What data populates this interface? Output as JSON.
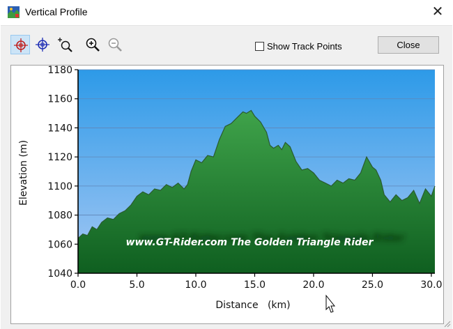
{
  "window": {
    "title": "Vertical Profile",
    "app_icon": "map-app-icon",
    "close_icon": "close-icon"
  },
  "toolbar": {
    "tools": [
      {
        "icon": "crosshair-red-icon",
        "active": true
      },
      {
        "icon": "crosshair-blue-icon",
        "active": false
      },
      {
        "icon": "zoom-plus-cursor-icon",
        "active": false
      },
      {
        "icon": "zoom-in-icon",
        "active": false
      },
      {
        "icon": "zoom-out-icon",
        "active": false
      }
    ],
    "show_track_points_label": "Show Track Points",
    "show_track_points_checked": false,
    "close_label": "Close"
  },
  "watermark": "www.GT-Rider.com    The Golden Triangle Rider",
  "chart_data": {
    "type": "area",
    "title": "",
    "xlabel": "Distance   (km)",
    "ylabel": "Elevation  (m)",
    "xlim": [
      0,
      30.3
    ],
    "ylim": [
      1040,
      1180
    ],
    "x_ticks": [
      "0.0",
      "5.0",
      "10.0",
      "15.0",
      "20.0",
      "25.0",
      "30.0"
    ],
    "y_ticks": [
      "1040",
      "1060",
      "1080",
      "1100",
      "1120",
      "1140",
      "1160",
      "1180"
    ],
    "grid": true,
    "colors": {
      "sky_top": "#2d9ae8",
      "sky_bottom": "#a6c8f4",
      "fill_top": "#3fa34a",
      "fill_bottom": "#0f5f20",
      "line": "#2a5a30"
    },
    "x": [
      0,
      0.4,
      0.8,
      1.2,
      1.6,
      2.0,
      2.5,
      3.0,
      3.5,
      4.0,
      4.5,
      5.0,
      5.5,
      6.0,
      6.5,
      7.0,
      7.5,
      8.0,
      8.5,
      9.0,
      9.3,
      9.6,
      10.0,
      10.5,
      11.0,
      11.5,
      12.0,
      12.5,
      13.0,
      13.5,
      14.0,
      14.3,
      14.7,
      15.0,
      15.5,
      16.0,
      16.3,
      16.6,
      17.0,
      17.3,
      17.6,
      18.0,
      18.5,
      19.0,
      19.5,
      20.0,
      20.5,
      21.0,
      21.5,
      22.0,
      22.5,
      23.0,
      23.5,
      24.0,
      24.5,
      25.0,
      25.3,
      25.7,
      26.0,
      26.5,
      27.0,
      27.5,
      28.0,
      28.5,
      29.0,
      29.5,
      30.0,
      30.3
    ],
    "values": [
      1064,
      1067,
      1066,
      1072,
      1070,
      1075,
      1078,
      1077,
      1081,
      1083,
      1087,
      1093,
      1096,
      1094,
      1098,
      1097,
      1101,
      1099,
      1102,
      1098,
      1101,
      1110,
      1118,
      1116,
      1121,
      1120,
      1132,
      1141,
      1143,
      1147,
      1151,
      1150,
      1152,
      1148,
      1144,
      1137,
      1128,
      1126,
      1128,
      1125,
      1130,
      1127,
      1117,
      1111,
      1112,
      1109,
      1104,
      1102,
      1100,
      1104,
      1102,
      1105,
      1104,
      1109,
      1120,
      1113,
      1111,
      1104,
      1094,
      1089,
      1094,
      1090,
      1092,
      1097,
      1088,
      1098,
      1093,
      1100
    ]
  }
}
